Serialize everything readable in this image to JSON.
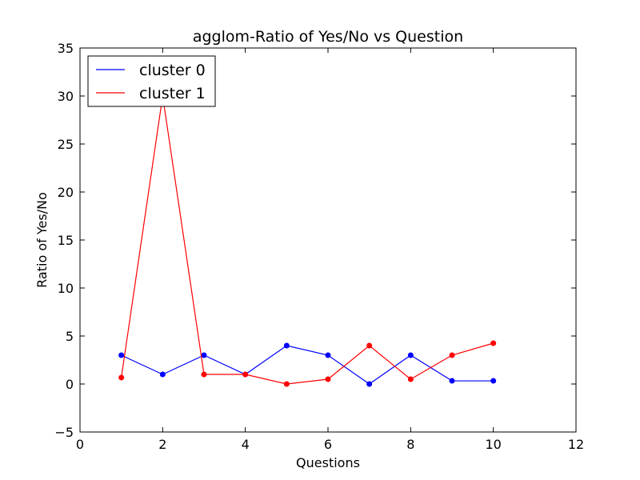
{
  "chart_data": {
    "type": "line",
    "title": "agglom-Ratio of Yes/No vs Question",
    "xlabel": "Questions",
    "ylabel": "Ratio of Yes/No",
    "xlim": [
      0,
      12
    ],
    "ylim": [
      -5,
      35
    ],
    "xticks": [
      0,
      2,
      4,
      6,
      8,
      10,
      12
    ],
    "yticks": [
      -5,
      0,
      5,
      10,
      15,
      20,
      25,
      30,
      35
    ],
    "grid": false,
    "legend_position": "top-left",
    "series": [
      {
        "name": "cluster 0",
        "color": "#0000ff",
        "x": [
          1,
          2,
          3,
          4,
          5,
          6,
          7,
          8,
          9,
          10
        ],
        "y": [
          3.0,
          1.0,
          3.0,
          1.0,
          4.0,
          3.0,
          0.0,
          3.0,
          0.33,
          0.33
        ]
      },
      {
        "name": "cluster 1",
        "color": "#ff0000",
        "x": [
          1,
          2,
          3,
          4,
          5,
          6,
          7,
          8,
          9,
          10
        ],
        "y": [
          0.67,
          30.0,
          1.0,
          1.0,
          0.0,
          0.5,
          4.0,
          0.5,
          3.0,
          4.25
        ]
      }
    ]
  }
}
